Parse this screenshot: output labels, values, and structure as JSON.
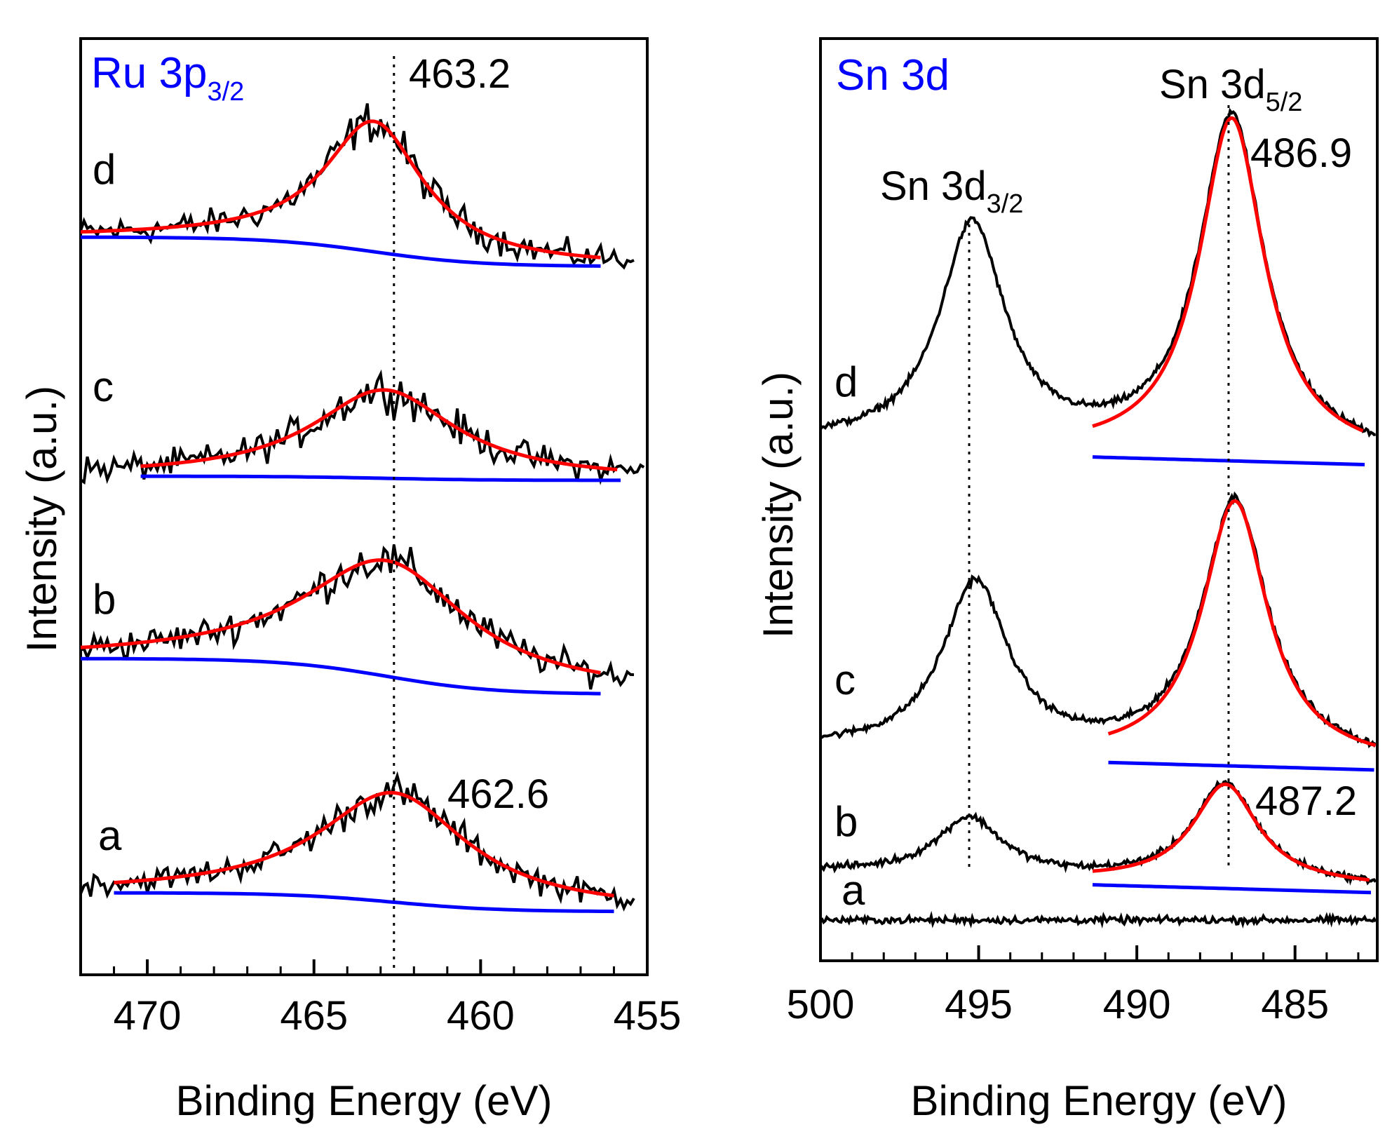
{
  "chart_data": [
    {
      "type": "line",
      "panel_label": {
        "main": "Ru 3p",
        "sub": "3/2",
        "color": "#0000ff"
      },
      "xlabel": "Binding Energy (eV)",
      "ylabel": "Intensity (a.u.)",
      "xlim": [
        472,
        455
      ],
      "x_reversed": true,
      "xticks": [
        470,
        465,
        460,
        455
      ],
      "xtick_labels": [
        "470",
        "465",
        "460",
        "455"
      ],
      "yticks": "none",
      "series": [
        {
          "name": "d",
          "peak_center": 463.2,
          "fwhm": 3.6,
          "amplitude": 0.62,
          "baseline_high": 0.14,
          "baseline_low": 0.0,
          "offset": 3.0,
          "noise": 0.09,
          "fit_range": [
            472,
            456.3
          ],
          "data_range": [
            472,
            455.3
          ]
        },
        {
          "name": "c",
          "peak_center": 462.9,
          "fwhm": 5.2,
          "amplitude": 0.42,
          "baseline_high": 0.02,
          "baseline_low": 0.0,
          "offset": 2.1,
          "noise": 0.09,
          "fit_range": [
            470.2,
            455.8
          ],
          "data_range": [
            472,
            455
          ]
        },
        {
          "name": "b",
          "peak_center": 462.8,
          "fwhm": 6.0,
          "amplitude": 0.55,
          "baseline_high": 0.17,
          "baseline_low": 0.0,
          "offset": 1.05,
          "noise": 0.09,
          "fit_range": [
            472,
            456.3
          ],
          "data_range": [
            472,
            455.3
          ]
        },
        {
          "name": "a",
          "peak_center": 462.6,
          "fwhm": 5.4,
          "amplitude": 0.52,
          "baseline_high": 0.09,
          "baseline_low": 0.0,
          "offset": 0.0,
          "noise": 0.08,
          "fit_range": [
            471,
            455.9
          ],
          "data_range": [
            472,
            455.3
          ]
        }
      ],
      "reference_lines": [
        462.6
      ],
      "annotations": [
        "463.2",
        "462.6"
      ],
      "colors": {
        "data": "#000000",
        "fit": "#ff0000",
        "background": "#0000ff"
      }
    },
    {
      "type": "line",
      "panel_label": {
        "main": "Sn 3d",
        "color": "#0000ff"
      },
      "xlabel": "Binding Energy (eV)",
      "ylabel": "Intensity (a.u.)",
      "xlim": [
        500,
        482.4
      ],
      "x_reversed": true,
      "xticks": [
        500,
        495,
        490,
        485
      ],
      "xtick_labels": [
        "500",
        "495",
        "490",
        "485"
      ],
      "yticks": "none",
      "series": [
        {
          "name": "d",
          "peaks": [
            {
              "center": 495.2,
              "amplitude": 0.85
            },
            {
              "center": 487.0,
              "amplitude": 1.3
            }
          ],
          "fwhm": 2.5,
          "offset": 2.2,
          "noise": 0.02,
          "fit_range": [
            491.4,
            482.8
          ]
        },
        {
          "name": "c",
          "peaks": [
            {
              "center": 495.1,
              "amplitude": 0.65
            },
            {
              "center": 486.9,
              "amplitude": 1.0
            }
          ],
          "fwhm": 2.5,
          "offset": 1.15,
          "noise": 0.02,
          "fit_range": [
            490.9,
            482.4
          ]
        },
        {
          "name": "b",
          "peaks": [
            {
              "center": 495.3,
              "amplitude": 0.22
            },
            {
              "center": 487.2,
              "amplitude": 0.38
            }
          ],
          "fwhm": 2.5,
          "offset": 0.55,
          "noise": 0.02,
          "fit_range": [
            491.4,
            482.6
          ]
        },
        {
          "name": "a",
          "peaks": [],
          "fwhm": 2.5,
          "offset": 0.28,
          "noise": 0.02,
          "fit_range": null
        }
      ],
      "peak_labels": [
        {
          "main": "Sn 3d",
          "sub": "5/2"
        },
        {
          "main": "Sn 3d",
          "sub": "3/2"
        }
      ],
      "reference_lines": [
        495.3,
        487.1
      ],
      "annotations": [
        "486.9",
        "487.2"
      ],
      "colors": {
        "data": "#000000",
        "fit": "#ff0000",
        "background": "#0000ff"
      }
    }
  ]
}
